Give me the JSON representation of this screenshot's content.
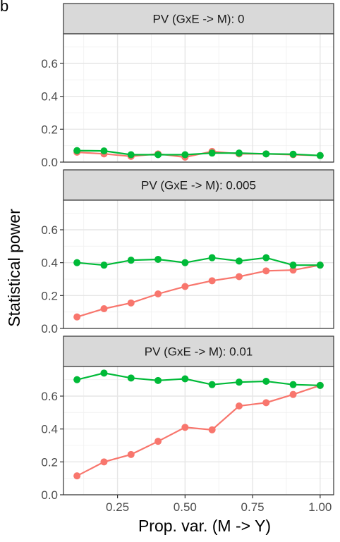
{
  "figure": {
    "panel_letter": "b",
    "ylabel": "Statistical power",
    "xlabel": "Prop. var. (M -> Y)"
  },
  "chart_data": [
    {
      "type": "line",
      "strip_label": "PV (GxE -> M): 0",
      "x": [
        0.1,
        0.2,
        0.3,
        0.4,
        0.5,
        0.6,
        0.7,
        0.8,
        0.9,
        1.0
      ],
      "xlim": [
        0.05,
        1.05
      ],
      "ylim": [
        0.0,
        0.78
      ],
      "x_ticks": [
        "0.25",
        "0.50",
        "0.75",
        "1.00"
      ],
      "y_ticks": [
        "0.0",
        "0.2",
        "0.4",
        "0.6"
      ],
      "grid": true,
      "series": [
        {
          "color": "#F8766D",
          "values": [
            0.06,
            0.05,
            0.035,
            0.05,
            0.03,
            0.065,
            0.05,
            0.05,
            0.045,
            0.04
          ]
        },
        {
          "color": "#00BA38",
          "values": [
            0.07,
            0.068,
            0.045,
            0.045,
            0.045,
            0.055,
            0.055,
            0.05,
            0.048,
            0.04
          ]
        }
      ]
    },
    {
      "type": "line",
      "strip_label": "PV (GxE -> M): 0.005",
      "x": [
        0.1,
        0.2,
        0.3,
        0.4,
        0.5,
        0.6,
        0.7,
        0.8,
        0.9,
        1.0
      ],
      "xlim": [
        0.05,
        1.05
      ],
      "ylim": [
        0.0,
        0.78
      ],
      "x_ticks": [
        "0.25",
        "0.50",
        "0.75",
        "1.00"
      ],
      "y_ticks": [
        "0.0",
        "0.2",
        "0.4",
        "0.6"
      ],
      "grid": true,
      "series": [
        {
          "color": "#F8766D",
          "values": [
            0.07,
            0.12,
            0.155,
            0.21,
            0.255,
            0.29,
            0.315,
            0.35,
            0.355,
            0.385
          ]
        },
        {
          "color": "#00BA38",
          "values": [
            0.4,
            0.385,
            0.415,
            0.42,
            0.4,
            0.43,
            0.41,
            0.43,
            0.385,
            0.385
          ]
        }
      ]
    },
    {
      "type": "line",
      "strip_label": "PV (GxE -> M): 0.01",
      "x": [
        0.1,
        0.2,
        0.3,
        0.4,
        0.5,
        0.6,
        0.7,
        0.8,
        0.9,
        1.0
      ],
      "xlim": [
        0.05,
        1.05
      ],
      "ylim": [
        0.0,
        0.78
      ],
      "x_ticks": [
        "0.25",
        "0.50",
        "0.75",
        "1.00"
      ],
      "y_ticks": [
        "0.0",
        "0.2",
        "0.4",
        "0.6"
      ],
      "grid": true,
      "series": [
        {
          "color": "#F8766D",
          "values": [
            0.115,
            0.2,
            0.245,
            0.325,
            0.41,
            0.395,
            0.54,
            0.56,
            0.61,
            0.665
          ]
        },
        {
          "color": "#00BA38",
          "values": [
            0.7,
            0.74,
            0.71,
            0.695,
            0.705,
            0.67,
            0.685,
            0.69,
            0.67,
            0.665
          ]
        }
      ]
    }
  ]
}
